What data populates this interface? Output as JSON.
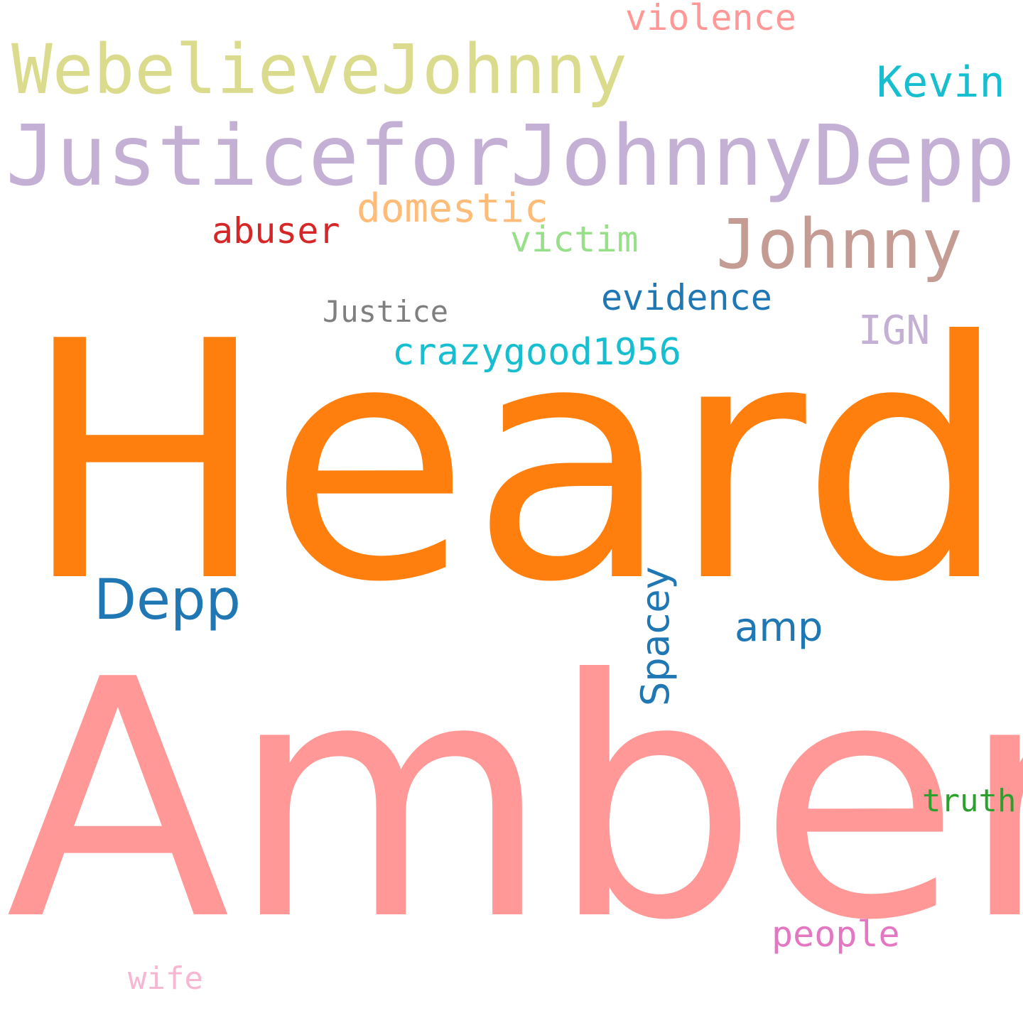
{
  "words": {
    "heard": {
      "text": "Heard",
      "color": "#ff7f0e"
    },
    "amber": {
      "text": "Amber",
      "color": "#ff9896"
    },
    "justicefor": {
      "text": "JusticeforJohnnyDepp",
      "color": "#c5b0d5"
    },
    "webelieve": {
      "text": "WebelieveJohnny",
      "color": "#dbdb8d"
    },
    "johnny": {
      "text": "Johnny",
      "color": "#c49c94"
    },
    "depp": {
      "text": "Depp",
      "color": "#1f77b4"
    },
    "violence": {
      "text": "violence",
      "color": "#ff9896"
    },
    "kevin": {
      "text": "Kevin",
      "color": "#17becf"
    },
    "domestic": {
      "text": "domestic",
      "color": "#ffbb78"
    },
    "abuser": {
      "text": "abuser",
      "color": "#d62728"
    },
    "victim": {
      "text": "victim",
      "color": "#98df8a"
    },
    "evidence": {
      "text": "evidence",
      "color": "#1f77b4"
    },
    "justice": {
      "text": "Justice",
      "color": "#7f7f7f"
    },
    "ign": {
      "text": "IGN",
      "color": "#c5b0d5"
    },
    "crazygood": {
      "text": "crazygood1956",
      "color": "#17becf"
    },
    "spacey": {
      "text": "Spacey",
      "color": "#1f77b4"
    },
    "amp": {
      "text": "amp",
      "color": "#1f77b4"
    },
    "truth": {
      "text": "truth",
      "color": "#2ca02c"
    },
    "people": {
      "text": "people",
      "color": "#e377c2"
    },
    "wife": {
      "text": "wife",
      "color": "#f7b6d2"
    }
  }
}
